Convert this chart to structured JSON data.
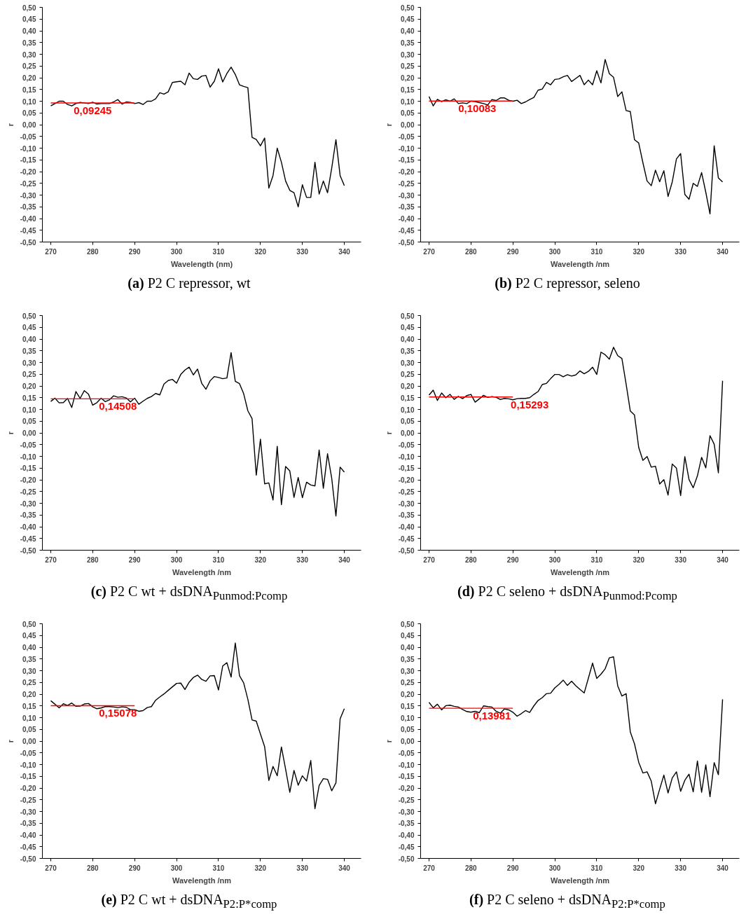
{
  "chart_data": [
    {
      "type": "line",
      "title": "(a) P2 C repressor, wt",
      "xlabel": "Wavelength (nm)",
      "ylabel": "r",
      "x": [
        270,
        271,
        272,
        273,
        274,
        275,
        276,
        277,
        278,
        279,
        280,
        281,
        282,
        283,
        284,
        285,
        286,
        287,
        288,
        289,
        290,
        291,
        292,
        293,
        294,
        295,
        296,
        297,
        298,
        299,
        300,
        301,
        302,
        303,
        304,
        305,
        306,
        307,
        308,
        309,
        310,
        311,
        312,
        313,
        314,
        315,
        316,
        317,
        318,
        319,
        320,
        321,
        322,
        323,
        324,
        325,
        326,
        327,
        328,
        329,
        330,
        331,
        332,
        333,
        334,
        335,
        336,
        337,
        338,
        339,
        340
      ],
      "xlim": [
        268,
        344
      ],
      "ylim": [
        -0.5,
        0.5
      ],
      "xticks": [
        270,
        280,
        290,
        300,
        310,
        320,
        330,
        340
      ],
      "yticks": [
        {
          "value": 0.5,
          "label": "0,50"
        },
        {
          "value": 0.45,
          "label": "0,45"
        },
        {
          "value": 0.4,
          "label": "0,40"
        },
        {
          "value": 0.35,
          "label": "0,35"
        },
        {
          "value": 0.3,
          "label": "0,30"
        },
        {
          "value": 0.25,
          "label": "0,25"
        },
        {
          "value": 0.2,
          "label": "0,20"
        },
        {
          "value": 0.15,
          "label": "0,15"
        },
        {
          "value": 0.1,
          "label": "0,10"
        },
        {
          "value": 0.05,
          "label": "0,05"
        },
        {
          "value": 0,
          "label": "0,00"
        },
        {
          "value": -0.05,
          "label": "-0,05"
        },
        {
          "value": -0.1,
          "label": "-0,10"
        },
        {
          "value": -0.15,
          "label": "-0,15"
        },
        {
          "value": -0.2,
          "label": "-0,20"
        },
        {
          "value": -0.25,
          "label": "-0,25"
        },
        {
          "value": -0.3,
          "label": "-0,30"
        },
        {
          "value": -0.35,
          "label": "-0,35"
        },
        {
          "value": -0.4,
          "label": "-0,40"
        },
        {
          "value": -0.45,
          "label": "-0,45"
        },
        {
          "value": -0.5,
          "label": "-0,50"
        }
      ],
      "series": [
        {
          "color": "#000000",
          "values": [
            0.08,
            0.09,
            0.1,
            0.1,
            0.086,
            0.08,
            0.09,
            0.095,
            0.093,
            0.09,
            0.096,
            0.088,
            0.09,
            0.09,
            0.09,
            0.097,
            0.107,
            0.088,
            0.097,
            0.095,
            0.09,
            0.094,
            0.086,
            0.1,
            0.1,
            0.11,
            0.136,
            0.13,
            0.14,
            0.18,
            0.183,
            0.185,
            0.17,
            0.22,
            0.196,
            0.193,
            0.207,
            0.21,
            0.16,
            0.185,
            0.238,
            0.182,
            0.218,
            0.245,
            0.214,
            0.17,
            0.163,
            0.158,
            -0.054,
            -0.063,
            -0.09,
            -0.057,
            -0.27,
            -0.217,
            -0.1,
            -0.16,
            -0.24,
            -0.28,
            -0.29,
            -0.35,
            -0.256,
            -0.31,
            -0.31,
            -0.16,
            -0.296,
            -0.24,
            -0.29,
            -0.185,
            -0.064,
            -0.217,
            -0.26
          ]
        },
        {
          "color": "#ff0000",
          "values": [
            0.09245,
            0.09245,
            0.09245,
            0.09245,
            0.09245,
            0.09245,
            0.09245,
            0.09245,
            0.09245,
            0.09245,
            0.09245,
            0.09245,
            0.09245,
            0.09245,
            0.09245,
            0.09245,
            0.09245,
            0.09245,
            0.09245,
            0.09245,
            0.09245,
            null,
            null,
            null,
            null,
            null,
            null,
            null,
            null,
            null,
            null,
            null,
            null,
            null,
            null,
            null,
            null,
            null,
            null,
            null,
            null,
            null,
            null,
            null,
            null,
            null,
            null,
            null,
            null,
            null,
            null,
            null,
            null,
            null,
            null,
            null,
            null,
            null,
            null,
            null,
            null,
            null,
            null,
            null,
            null,
            null,
            null,
            null,
            null,
            null,
            null
          ]
        }
      ],
      "annotations": [
        {
          "text": "0,09245",
          "x": 280,
          "y": 0.09245
        }
      ]
    },
    {
      "type": "line",
      "title": "(b) P2 C repressor, seleno",
      "xlabel": "Wavelength /nm",
      "ylabel": "r",
      "x": [
        270,
        271,
        272,
        273,
        274,
        275,
        276,
        277,
        278,
        279,
        280,
        281,
        282,
        283,
        284,
        285,
        286,
        287,
        288,
        289,
        290,
        291,
        292,
        293,
        294,
        295,
        296,
        297,
        298,
        299,
        300,
        301,
        302,
        303,
        304,
        305,
        306,
        307,
        308,
        309,
        310,
        311,
        312,
        313,
        314,
        315,
        316,
        317,
        318,
        319,
        320,
        321,
        322,
        323,
        324,
        325,
        326,
        327,
        328,
        329,
        330,
        331,
        332,
        333,
        334,
        335,
        336,
        337,
        338,
        339,
        340
      ],
      "xlim": [
        268,
        344
      ],
      "ylim": [
        -0.5,
        0.5
      ],
      "xticks": [
        270,
        280,
        290,
        300,
        310,
        320,
        330,
        340
      ],
      "yticks": [
        {
          "value": 0.5,
          "label": "0,50"
        },
        {
          "value": 0.45,
          "label": "0,45"
        },
        {
          "value": 0.4,
          "label": "0,40"
        },
        {
          "value": 0.35,
          "label": "0,35"
        },
        {
          "value": 0.3,
          "label": "0,30"
        },
        {
          "value": 0.25,
          "label": "0,25"
        },
        {
          "value": 0.2,
          "label": "0,20"
        },
        {
          "value": 0.15,
          "label": "0,15"
        },
        {
          "value": 0.1,
          "label": "0,10"
        },
        {
          "value": 0.05,
          "label": "0,05"
        },
        {
          "value": 0,
          "label": "0,00"
        },
        {
          "value": -0.05,
          "label": "-0,05"
        },
        {
          "value": -0.1,
          "label": "-0,10"
        },
        {
          "value": -0.15,
          "label": "-0,15"
        },
        {
          "value": -0.2,
          "label": "-0,20"
        },
        {
          "value": -0.25,
          "label": "-0,25"
        },
        {
          "value": -0.3,
          "label": "-0,30"
        },
        {
          "value": -0.35,
          "label": "-0,35"
        },
        {
          "value": -0.4,
          "label": "-0,40"
        },
        {
          "value": -0.45,
          "label": "-0,45"
        },
        {
          "value": -0.5,
          "label": "-0,50"
        }
      ],
      "series": [
        {
          "color": "#000000",
          "values": [
            0.12,
            0.08,
            0.108,
            0.098,
            0.106,
            0.1,
            0.11,
            0.09,
            0.093,
            0.09,
            0.1,
            0.098,
            0.094,
            0.09,
            0.084,
            0.107,
            0.103,
            0.114,
            0.114,
            0.104,
            0.1,
            0.104,
            0.09,
            0.097,
            0.107,
            0.116,
            0.147,
            0.152,
            0.18,
            0.17,
            0.193,
            0.195,
            0.204,
            0.21,
            0.184,
            0.197,
            0.21,
            0.17,
            0.19,
            0.17,
            0.23,
            0.178,
            0.278,
            0.217,
            0.202,
            0.12,
            0.14,
            0.06,
            0.056,
            -0.064,
            -0.078,
            -0.162,
            -0.24,
            -0.26,
            -0.194,
            -0.243,
            -0.196,
            -0.306,
            -0.244,
            -0.146,
            -0.123,
            -0.297,
            -0.318,
            -0.25,
            -0.263,
            -0.204,
            -0.288,
            -0.38,
            -0.09,
            -0.227,
            -0.244
          ]
        },
        {
          "color": "#ff0000",
          "values": [
            0.10083,
            0.10083,
            0.10083,
            0.10083,
            0.10083,
            0.10083,
            0.10083,
            0.10083,
            0.10083,
            0.10083,
            0.10083,
            0.10083,
            0.10083,
            0.10083,
            0.10083,
            0.10083,
            0.10083,
            0.10083,
            0.10083,
            0.10083,
            0.10083,
            null,
            null,
            null,
            null,
            null,
            null,
            null,
            null,
            null,
            null,
            null,
            null,
            null,
            null,
            null,
            null,
            null,
            null,
            null,
            null,
            null,
            null,
            null,
            null,
            null,
            null,
            null,
            null,
            null,
            null,
            null,
            null,
            null,
            null,
            null,
            null,
            null,
            null,
            null,
            null,
            null,
            null,
            null,
            null,
            null,
            null,
            null,
            null,
            null,
            null
          ]
        }
      ],
      "annotations": [
        {
          "text": "0,10083",
          "x": 281.5,
          "y": 0.10083
        }
      ]
    },
    {
      "type": "line",
      "title": "(c) P2 C wt + dsDNA$_{Punmod:Pcomp}$",
      "xlabel": "Wavelength /nm",
      "ylabel": "r",
      "x": [
        270,
        271,
        272,
        273,
        274,
        275,
        276,
        277,
        278,
        279,
        280,
        281,
        282,
        283,
        284,
        285,
        286,
        287,
        288,
        289,
        290,
        291,
        292,
        293,
        294,
        295,
        296,
        297,
        298,
        299,
        300,
        301,
        302,
        303,
        304,
        305,
        306,
        307,
        308,
        309,
        310,
        311,
        312,
        313,
        314,
        315,
        316,
        317,
        318,
        319,
        320,
        321,
        322,
        323,
        324,
        325,
        326,
        327,
        328,
        329,
        330,
        331,
        332,
        333,
        334,
        335,
        336,
        337,
        338,
        339,
        340
      ],
      "xlim": [
        268,
        344
      ],
      "ylim": [
        -0.5,
        0.5
      ],
      "xticks": [
        270,
        280,
        290,
        300,
        310,
        320,
        330,
        340
      ],
      "yticks": [
        {
          "value": 0.5,
          "label": "0,50"
        },
        {
          "value": 0.45,
          "label": "0,45"
        },
        {
          "value": 0.4,
          "label": "0,40"
        },
        {
          "value": 0.35,
          "label": "0,35"
        },
        {
          "value": 0.3,
          "label": "0,30"
        },
        {
          "value": 0.25,
          "label": "0,25"
        },
        {
          "value": 0.2,
          "label": "0,20"
        },
        {
          "value": 0.15,
          "label": "0,15"
        },
        {
          "value": 0.1,
          "label": "0,10"
        },
        {
          "value": 0.05,
          "label": "0,05"
        },
        {
          "value": 0,
          "label": "0,00"
        },
        {
          "value": -0.05,
          "label": "-0,05"
        },
        {
          "value": -0.1,
          "label": "-0,10"
        },
        {
          "value": -0.15,
          "label": "-0,15"
        },
        {
          "value": -0.2,
          "label": "-0,20"
        },
        {
          "value": -0.25,
          "label": "-0,25"
        },
        {
          "value": -0.3,
          "label": "-0,30"
        },
        {
          "value": -0.35,
          "label": "-0,35"
        },
        {
          "value": -0.4,
          "label": "-0,40"
        },
        {
          "value": -0.45,
          "label": "-0,45"
        },
        {
          "value": -0.5,
          "label": "-0,50"
        }
      ],
      "series": [
        {
          "color": "#000000",
          "values": [
            0.134,
            0.148,
            0.128,
            0.129,
            0.147,
            0.108,
            0.176,
            0.147,
            0.18,
            0.165,
            0.118,
            0.129,
            0.148,
            0.133,
            0.141,
            0.158,
            0.152,
            0.154,
            0.149,
            0.132,
            0.148,
            0.122,
            0.135,
            0.147,
            0.155,
            0.168,
            0.162,
            0.208,
            0.223,
            0.228,
            0.212,
            0.249,
            0.268,
            0.28,
            0.247,
            0.272,
            0.211,
            0.186,
            0.222,
            0.24,
            0.236,
            0.231,
            0.234,
            0.342,
            0.22,
            0.21,
            0.167,
            0.094,
            0.061,
            -0.18,
            -0.027,
            -0.217,
            -0.213,
            -0.286,
            -0.057,
            -0.306,
            -0.143,
            -0.162,
            -0.275,
            -0.19,
            -0.276,
            -0.21,
            -0.222,
            -0.226,
            -0.073,
            -0.236,
            -0.089,
            -0.194,
            -0.354,
            -0.146,
            -0.167
          ]
        },
        {
          "color": "#ff0000",
          "values": [
            0.14508,
            0.14508,
            0.14508,
            0.14508,
            0.14508,
            0.14508,
            0.14508,
            0.14508,
            0.14508,
            0.14508,
            0.14508,
            0.14508,
            0.14508,
            0.14508,
            0.14508,
            0.14508,
            0.14508,
            0.14508,
            0.14508,
            0.14508,
            0.14508,
            null,
            null,
            null,
            null,
            null,
            null,
            null,
            null,
            null,
            null,
            null,
            null,
            null,
            null,
            null,
            null,
            null,
            null,
            null,
            null,
            null,
            null,
            null,
            null,
            null,
            null,
            null,
            null,
            null,
            null,
            null,
            null,
            null,
            null,
            null,
            null,
            null,
            null,
            null,
            null,
            null,
            null,
            null,
            null,
            null,
            null,
            null,
            null,
            null,
            null
          ]
        }
      ],
      "annotations": [
        {
          "text": "0,14508",
          "x": 286,
          "y": 0.14508
        }
      ]
    },
    {
      "type": "line",
      "title": "(d) P2 C seleno + dsDNA$_{Punmod:Pcomp}$",
      "xlabel": "Wavelength /nm",
      "ylabel": "r",
      "x": [
        270,
        271,
        272,
        273,
        274,
        275,
        276,
        277,
        278,
        279,
        280,
        281,
        282,
        283,
        284,
        285,
        286,
        287,
        288,
        289,
        290,
        291,
        292,
        293,
        294,
        295,
        296,
        297,
        298,
        299,
        300,
        301,
        302,
        303,
        304,
        305,
        306,
        307,
        308,
        309,
        310,
        311,
        312,
        313,
        314,
        315,
        316,
        317,
        318,
        319,
        320,
        321,
        322,
        323,
        324,
        325,
        326,
        327,
        328,
        329,
        330,
        331,
        332,
        333,
        334,
        335,
        336,
        337,
        338,
        339,
        340
      ],
      "xlim": [
        268,
        344
      ],
      "ylim": [
        -0.5,
        0.5
      ],
      "xticks": [
        270,
        280,
        290,
        300,
        310,
        320,
        330,
        340
      ],
      "yticks": [
        {
          "value": 0.5,
          "label": "0,50"
        },
        {
          "value": 0.45,
          "label": "0,45"
        },
        {
          "value": 0.4,
          "label": "0,40"
        },
        {
          "value": 0.35,
          "label": "0,35"
        },
        {
          "value": 0.3,
          "label": "0,30"
        },
        {
          "value": 0.25,
          "label": "0,25"
        },
        {
          "value": 0.2,
          "label": "0,20"
        },
        {
          "value": 0.15,
          "label": "0,15"
        },
        {
          "value": 0.1,
          "label": "0,10"
        },
        {
          "value": 0.05,
          "label": "0,05"
        },
        {
          "value": 0,
          "label": "0,00"
        },
        {
          "value": -0.05,
          "label": "-0,05"
        },
        {
          "value": -0.1,
          "label": "-0,10"
        },
        {
          "value": -0.15,
          "label": "-0,15"
        },
        {
          "value": -0.2,
          "label": "-0,20"
        },
        {
          "value": -0.25,
          "label": "-0,25"
        },
        {
          "value": -0.3,
          "label": "-0,30"
        },
        {
          "value": -0.35,
          "label": "-0,35"
        },
        {
          "value": -0.4,
          "label": "-0,40"
        },
        {
          "value": -0.45,
          "label": "-0,45"
        },
        {
          "value": -0.5,
          "label": "-0,50"
        }
      ],
      "series": [
        {
          "color": "#000000",
          "values": [
            0.161,
            0.182,
            0.138,
            0.17,
            0.15,
            0.164,
            0.143,
            0.156,
            0.146,
            0.159,
            0.164,
            0.131,
            0.145,
            0.16,
            0.151,
            0.155,
            0.152,
            0.142,
            0.147,
            0.145,
            0.141,
            0.146,
            0.147,
            0.147,
            0.15,
            0.164,
            0.176,
            0.206,
            0.211,
            0.231,
            0.249,
            0.249,
            0.239,
            0.248,
            0.242,
            0.247,
            0.264,
            0.252,
            0.262,
            0.28,
            0.249,
            0.344,
            0.333,
            0.314,
            0.365,
            0.329,
            0.317,
            0.208,
            0.093,
            0.076,
            -0.062,
            -0.117,
            -0.101,
            -0.146,
            -0.142,
            -0.218,
            -0.199,
            -0.265,
            -0.133,
            -0.15,
            -0.267,
            -0.101,
            -0.199,
            -0.234,
            -0.183,
            -0.104,
            -0.149,
            -0.012,
            -0.048,
            -0.17,
            0.222
          ]
        },
        {
          "color": "#ff0000",
          "values": [
            0.15293,
            0.15293,
            0.15293,
            0.15293,
            0.15293,
            0.15293,
            0.15293,
            0.15293,
            0.15293,
            0.15293,
            0.15293,
            0.15293,
            0.15293,
            0.15293,
            0.15293,
            0.15293,
            0.15293,
            0.15293,
            0.15293,
            0.15293,
            0.15293,
            null,
            null,
            null,
            null,
            null,
            null,
            null,
            null,
            null,
            null,
            null,
            null,
            null,
            null,
            null,
            null,
            null,
            null,
            null,
            null,
            null,
            null,
            null,
            null,
            null,
            null,
            null,
            null,
            null,
            null,
            null,
            null,
            null,
            null,
            null,
            null,
            null,
            null,
            null,
            null,
            null,
            null,
            null,
            null,
            null,
            null,
            null,
            null,
            null,
            null
          ]
        }
      ],
      "annotations": [
        {
          "text": "0,15293",
          "x": 294,
          "y": 0.15293
        }
      ]
    },
    {
      "type": "line",
      "title": "(e) P2 C wt + dsDNA$_{P2:P*comp}$",
      "xlabel": "Wavelength /nm",
      "ylabel": "r",
      "x": [
        270,
        271,
        272,
        273,
        274,
        275,
        276,
        277,
        278,
        279,
        280,
        281,
        282,
        283,
        284,
        285,
        286,
        287,
        288,
        289,
        290,
        291,
        292,
        293,
        294,
        295,
        296,
        297,
        298,
        299,
        300,
        301,
        302,
        303,
        304,
        305,
        306,
        307,
        308,
        309,
        310,
        311,
        312,
        313,
        314,
        315,
        316,
        317,
        318,
        319,
        320,
        321,
        322,
        323,
        324,
        325,
        326,
        327,
        328,
        329,
        330,
        331,
        332,
        333,
        334,
        335,
        336,
        337,
        338,
        339,
        340
      ],
      "xlim": [
        268,
        344
      ],
      "ylim": [
        -0.5,
        0.5
      ],
      "xticks": [
        270,
        280,
        290,
        300,
        310,
        320,
        330,
        340
      ],
      "yticks": [
        {
          "value": 0.5,
          "label": "0,50"
        },
        {
          "value": 0.45,
          "label": "0,45"
        },
        {
          "value": 0.4,
          "label": "0,40"
        },
        {
          "value": 0.35,
          "label": "0,35"
        },
        {
          "value": 0.3,
          "label": "0,30"
        },
        {
          "value": 0.25,
          "label": "0,25"
        },
        {
          "value": 0.2,
          "label": "0,20"
        },
        {
          "value": 0.15,
          "label": "0,15"
        },
        {
          "value": 0.1,
          "label": "0,10"
        },
        {
          "value": 0.05,
          "label": "0,05"
        },
        {
          "value": 0,
          "label": "0,00"
        },
        {
          "value": -0.05,
          "label": "-0,05"
        },
        {
          "value": -0.1,
          "label": "-0,10"
        },
        {
          "value": -0.15,
          "label": "-0,15"
        },
        {
          "value": -0.2,
          "label": "-0,20"
        },
        {
          "value": -0.25,
          "label": "-0,25"
        },
        {
          "value": -0.3,
          "label": "-0,30"
        },
        {
          "value": -0.35,
          "label": "-0,35"
        },
        {
          "value": -0.4,
          "label": "-0,40"
        },
        {
          "value": -0.45,
          "label": "-0,45"
        },
        {
          "value": -0.5,
          "label": "-0,50"
        }
      ],
      "series": [
        {
          "color": "#000000",
          "values": [
            0.172,
            0.157,
            0.142,
            0.159,
            0.152,
            0.162,
            0.148,
            0.149,
            0.158,
            0.16,
            0.146,
            0.138,
            0.141,
            0.147,
            0.147,
            0.145,
            0.142,
            0.146,
            0.144,
            0.134,
            0.134,
            0.127,
            0.13,
            0.143,
            0.147,
            0.174,
            0.188,
            0.201,
            0.216,
            0.231,
            0.246,
            0.247,
            0.22,
            0.251,
            0.271,
            0.281,
            0.263,
            0.255,
            0.278,
            0.279,
            0.218,
            0.32,
            0.334,
            0.273,
            0.418,
            0.279,
            0.248,
            0.178,
            0.09,
            0.085,
            0.03,
            -0.024,
            -0.168,
            -0.108,
            -0.148,
            -0.025,
            -0.12,
            -0.218,
            -0.125,
            -0.188,
            -0.148,
            -0.17,
            -0.083,
            -0.288,
            -0.189,
            -0.16,
            -0.163,
            -0.212,
            -0.178,
            0.095,
            0.138
          ]
        },
        {
          "color": "#ff0000",
          "values": [
            0.15078,
            0.15078,
            0.15078,
            0.15078,
            0.15078,
            0.15078,
            0.15078,
            0.15078,
            0.15078,
            0.15078,
            0.15078,
            0.15078,
            0.15078,
            0.15078,
            0.15078,
            0.15078,
            0.15078,
            0.15078,
            0.15078,
            0.15078,
            0.15078,
            null,
            null,
            null,
            null,
            null,
            null,
            null,
            null,
            null,
            null,
            null,
            null,
            null,
            null,
            null,
            null,
            null,
            null,
            null,
            null,
            null,
            null,
            null,
            null,
            null,
            null,
            null,
            null,
            null,
            null,
            null,
            null,
            null,
            null,
            null,
            null,
            null,
            null,
            null,
            null,
            null,
            null,
            null,
            null,
            null,
            null,
            null,
            null,
            null,
            null
          ]
        }
      ],
      "annotations": [
        {
          "text": "0,15078",
          "x": 286,
          "y": 0.15078
        }
      ]
    },
    {
      "type": "line",
      "title": "(f) P2 C seleno + dsDNA$_{P2:P*comp}$",
      "xlabel": "Wavelength /nm",
      "ylabel": "r",
      "x": [
        270,
        271,
        272,
        273,
        274,
        275,
        276,
        277,
        278,
        279,
        280,
        281,
        282,
        283,
        284,
        285,
        286,
        287,
        288,
        289,
        290,
        291,
        292,
        293,
        294,
        295,
        296,
        297,
        298,
        299,
        300,
        301,
        302,
        303,
        304,
        305,
        306,
        307,
        308,
        309,
        310,
        311,
        312,
        313,
        314,
        315,
        316,
        317,
        318,
        319,
        320,
        321,
        322,
        323,
        324,
        325,
        326,
        327,
        328,
        329,
        330,
        331,
        332,
        333,
        334,
        335,
        336,
        337,
        338,
        339,
        340
      ],
      "xlim": [
        268,
        344
      ],
      "ylim": [
        -0.5,
        0.5
      ],
      "xticks": [
        270,
        280,
        290,
        300,
        310,
        320,
        330,
        340
      ],
      "yticks": [
        {
          "value": 0.5,
          "label": "0,50"
        },
        {
          "value": 0.45,
          "label": "0,45"
        },
        {
          "value": 0.4,
          "label": "0,40"
        },
        {
          "value": 0.35,
          "label": "0,35"
        },
        {
          "value": 0.3,
          "label": "0,30"
        },
        {
          "value": 0.25,
          "label": "0,25"
        },
        {
          "value": 0.2,
          "label": "0,20"
        },
        {
          "value": 0.15,
          "label": "0,15"
        },
        {
          "value": 0.1,
          "label": "0,10"
        },
        {
          "value": 0.05,
          "label": "0,05"
        },
        {
          "value": 0,
          "label": "0,00"
        },
        {
          "value": -0.05,
          "label": "-0,05"
        },
        {
          "value": -0.1,
          "label": "-0,10"
        },
        {
          "value": -0.15,
          "label": "-0,15"
        },
        {
          "value": -0.2,
          "label": "-0,20"
        },
        {
          "value": -0.25,
          "label": "-0,25"
        },
        {
          "value": -0.3,
          "label": "-0,30"
        },
        {
          "value": -0.35,
          "label": "-0,35"
        },
        {
          "value": -0.4,
          "label": "-0,40"
        },
        {
          "value": -0.45,
          "label": "-0,45"
        },
        {
          "value": -0.5,
          "label": "-0,50"
        }
      ],
      "series": [
        {
          "color": "#000000",
          "values": [
            0.165,
            0.142,
            0.157,
            0.133,
            0.151,
            0.153,
            0.148,
            0.145,
            0.135,
            0.126,
            0.123,
            0.127,
            0.121,
            0.15,
            0.147,
            0.145,
            0.127,
            0.119,
            0.137,
            0.133,
            0.123,
            0.106,
            0.117,
            0.13,
            0.122,
            0.15,
            0.173,
            0.185,
            0.202,
            0.204,
            0.227,
            0.242,
            0.26,
            0.237,
            0.255,
            0.236,
            0.22,
            0.205,
            0.268,
            0.332,
            0.267,
            0.285,
            0.308,
            0.355,
            0.359,
            0.235,
            0.192,
            0.202,
            0.039,
            -0.012,
            -0.09,
            -0.136,
            -0.131,
            -0.171,
            -0.267,
            -0.205,
            -0.145,
            -0.221,
            -0.157,
            -0.131,
            -0.214,
            -0.167,
            -0.141,
            -0.216,
            -0.085,
            -0.218,
            -0.101,
            -0.237,
            -0.092,
            -0.143,
            0.178
          ]
        },
        {
          "color": "#ff0000",
          "values": [
            0.13981,
            0.13981,
            0.13981,
            0.13981,
            0.13981,
            0.13981,
            0.13981,
            0.13981,
            0.13981,
            0.13981,
            0.13981,
            0.13981,
            0.13981,
            0.13981,
            0.13981,
            0.13981,
            0.13981,
            0.13981,
            0.13981,
            0.13981,
            0.13981,
            null,
            null,
            null,
            null,
            null,
            null,
            null,
            null,
            null,
            null,
            null,
            null,
            null,
            null,
            null,
            null,
            null,
            null,
            null,
            null,
            null,
            null,
            null,
            null,
            null,
            null,
            null,
            null,
            null,
            null,
            null,
            null,
            null,
            null,
            null,
            null,
            null,
            null,
            null,
            null,
            null,
            null,
            null,
            null,
            null,
            null,
            null,
            null,
            null,
            null
          ]
        }
      ],
      "annotations": [
        {
          "text": "0,13981",
          "x": 285,
          "y": 0.13981
        }
      ]
    }
  ]
}
